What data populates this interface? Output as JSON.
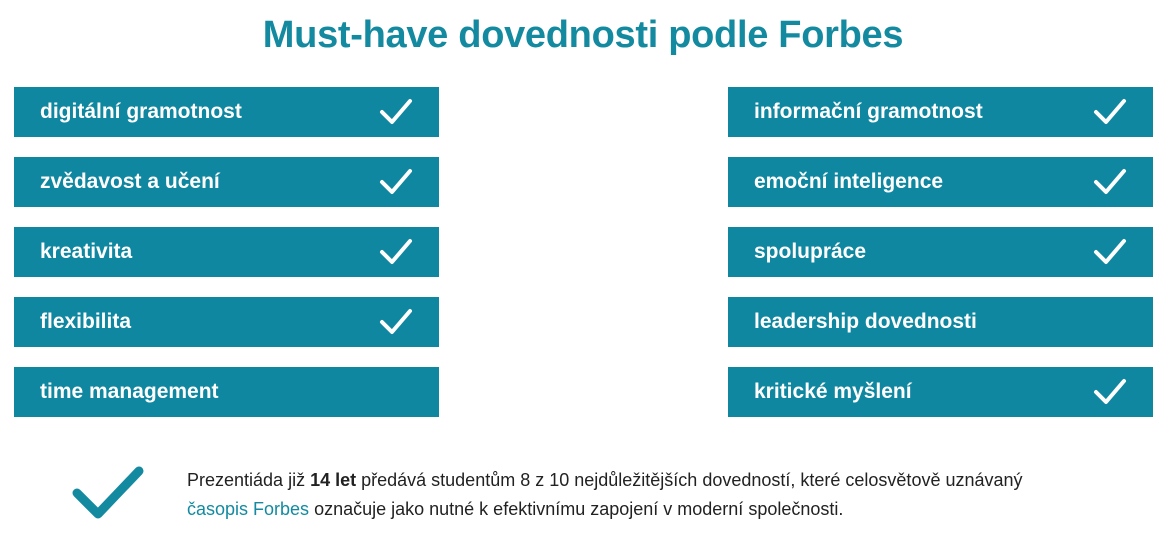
{
  "title": "Must-have dovednosti podle Forbes",
  "left_skills": [
    {
      "label": "digitální gramotnost",
      "checked": true
    },
    {
      "label": "zvědavost a učení",
      "checked": true
    },
    {
      "label": "kreativita",
      "checked": true
    },
    {
      "label": "flexibilita",
      "checked": true
    },
    {
      "label": "time management",
      "checked": false
    }
  ],
  "right_skills": [
    {
      "label": "informační gramotnost",
      "checked": true
    },
    {
      "label": "emoční inteligence",
      "checked": true
    },
    {
      "label": "spolupráce",
      "checked": true
    },
    {
      "label": "leadership dovednosti",
      "checked": false
    },
    {
      "label": "kritické myšlení",
      "checked": true
    }
  ],
  "note": {
    "part1": "Prezentiáda již ",
    "bold": "14 let",
    "part2": " předává studentům 8 z 10 nejdůležitějších dovedností, které celosvětově uznávaný ",
    "link": "časopis Forbes",
    "part3": " označuje jako nutné k efektivnímu zapojení v moderní společnosti."
  },
  "colors": {
    "accent": "#138aa0",
    "bar": "#0f87a0"
  },
  "icons": {
    "skill_check": "check-icon",
    "note_check": "check-icon"
  }
}
